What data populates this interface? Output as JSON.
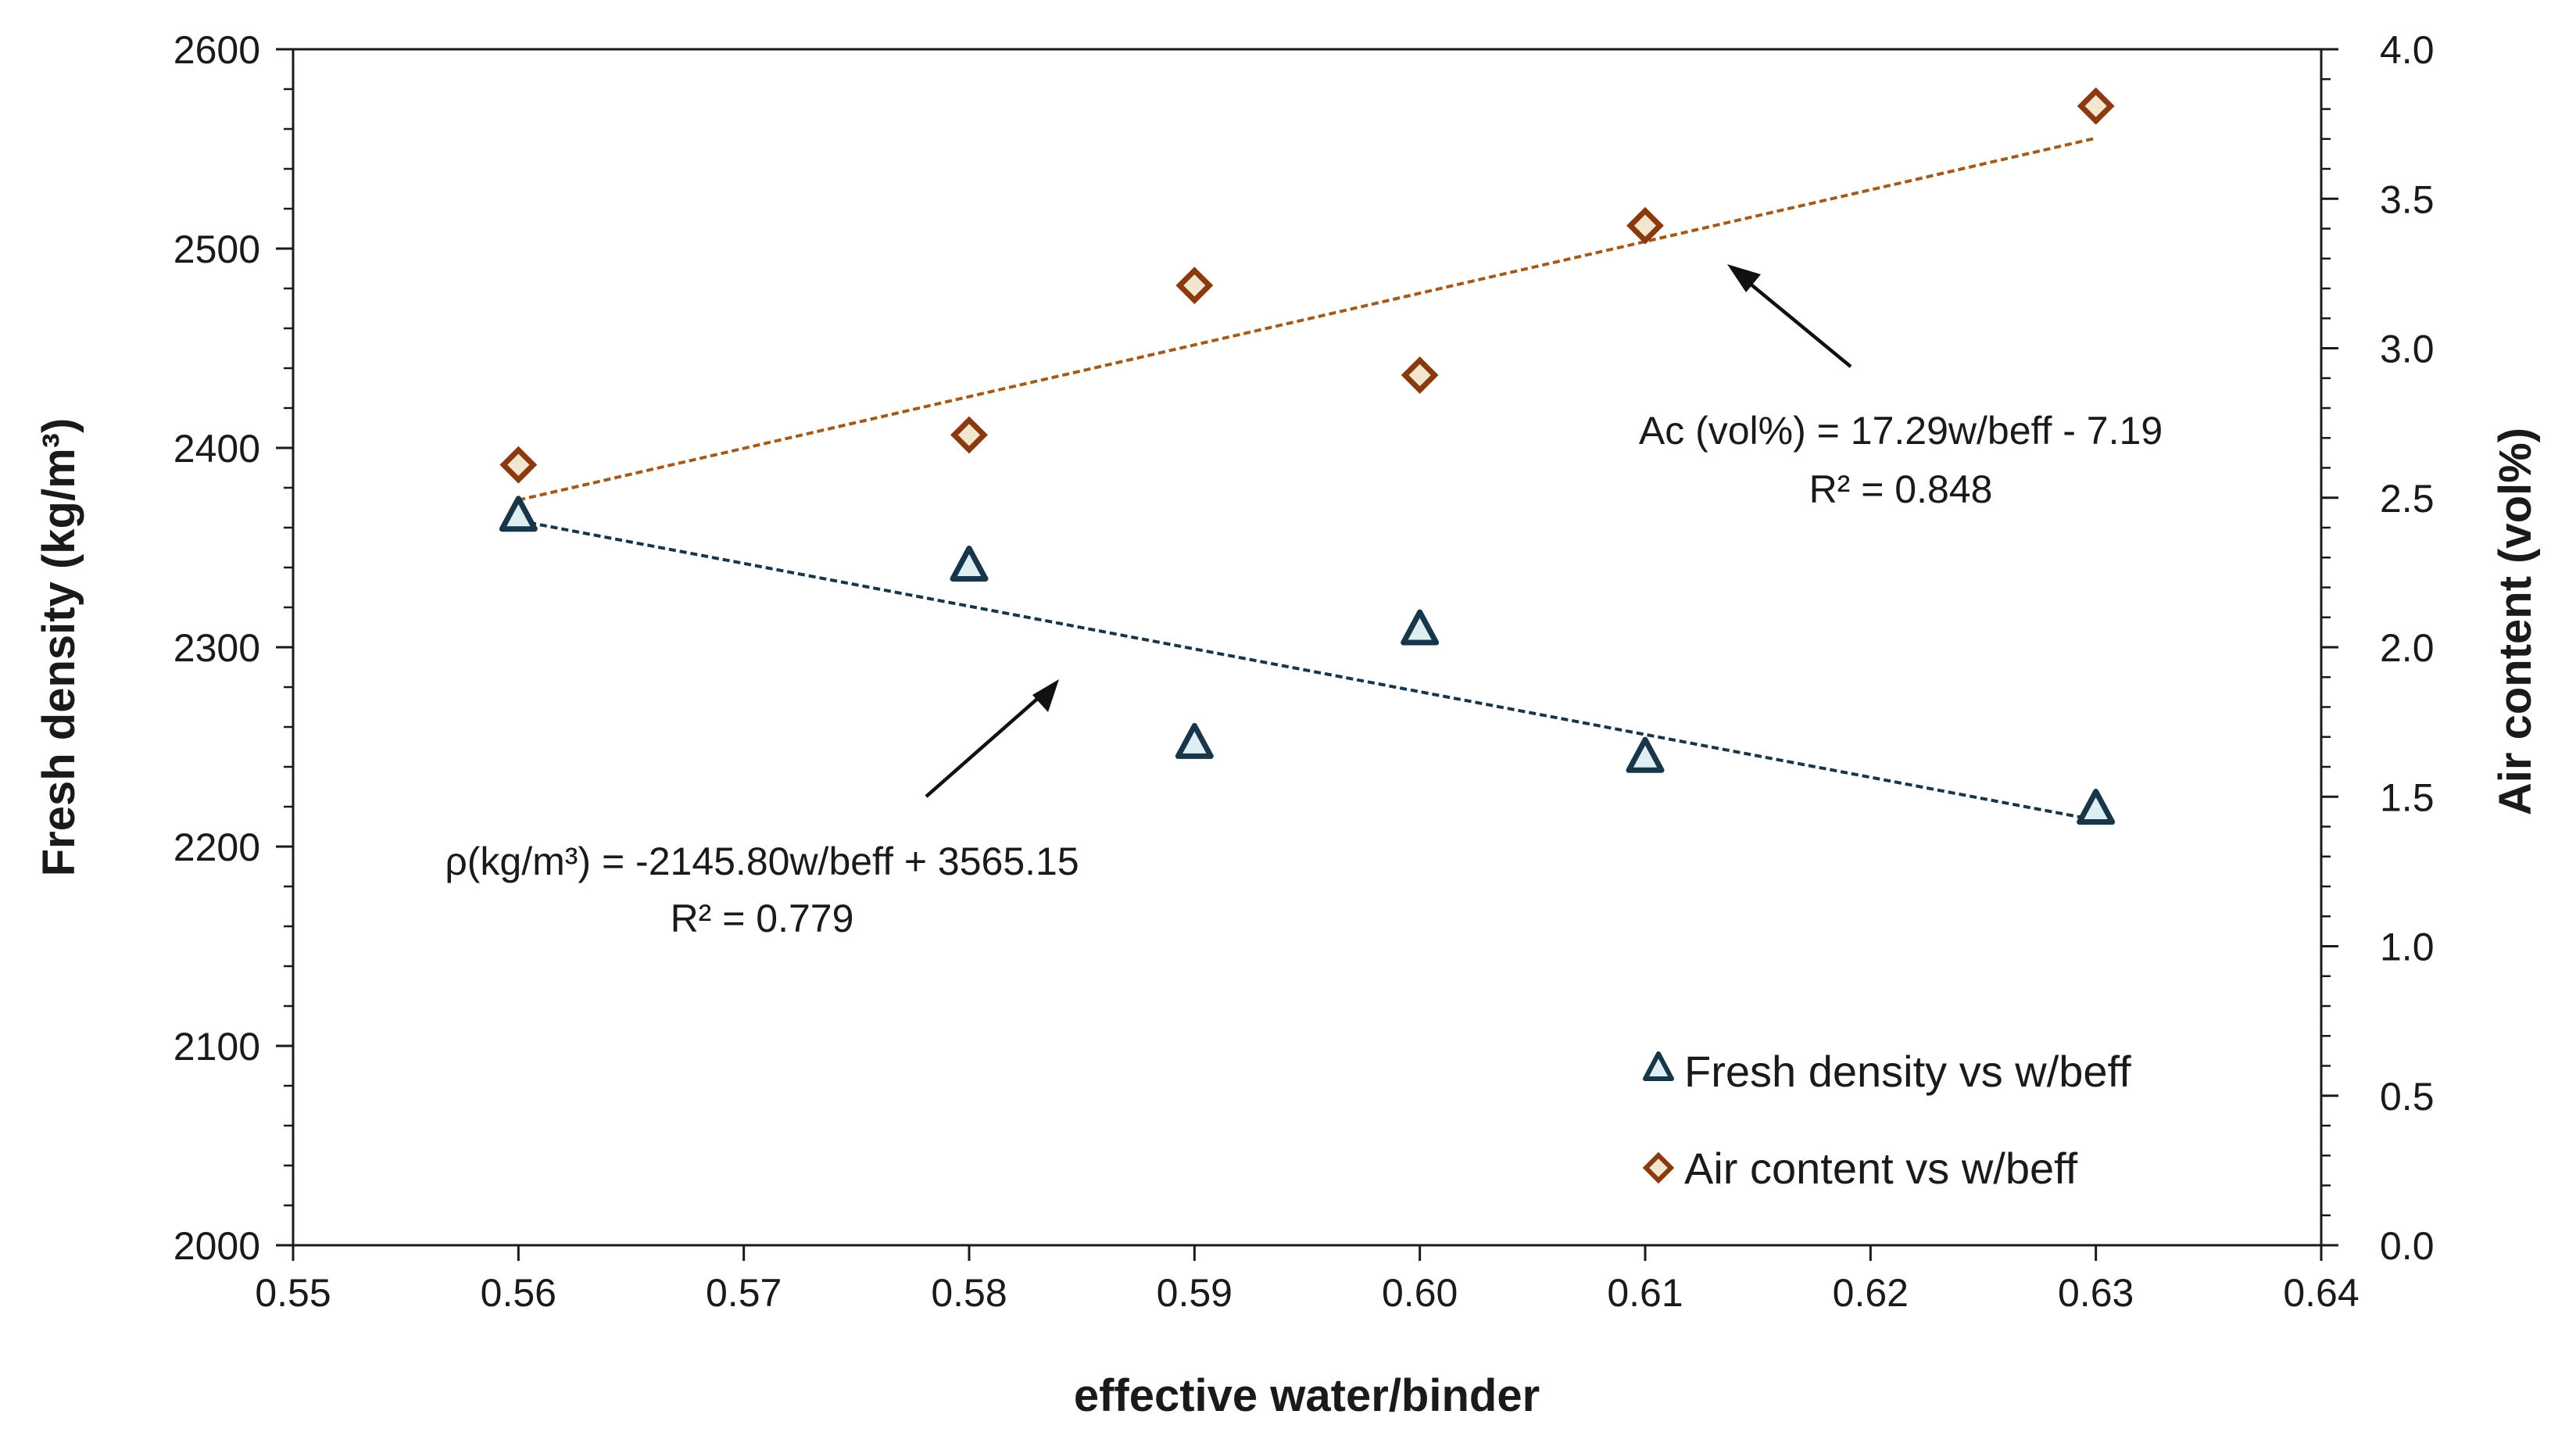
{
  "chart_data": {
    "type": "scatter",
    "xlabel": "effective water/binder",
    "ylabel_left": "Fresh density (kg/m³)",
    "ylabel_right": "Air content (vol%)",
    "xlim": [
      0.55,
      0.64
    ],
    "ylim_left": [
      2000,
      2600
    ],
    "ylim_right": [
      0.0,
      4.0
    ],
    "x_ticks": [
      "0.55",
      "0.56",
      "0.57",
      "0.58",
      "0.59",
      "0.60",
      "0.61",
      "0.62",
      "0.63",
      "0.64"
    ],
    "y_left_ticks": [
      "2000",
      "2100",
      "2200",
      "2300",
      "2400",
      "2500",
      "2600"
    ],
    "y_right_ticks": [
      "0.0",
      "0.5",
      "1.0",
      "1.5",
      "2.0",
      "2.5",
      "3.0",
      "3.5",
      "4.0"
    ],
    "grid": false,
    "legend_position": "bottom-right",
    "series": [
      {
        "name": "Fresh density vs w/beff",
        "axis": "left",
        "marker": "triangle",
        "color": "#17364a",
        "fill": "#dfeef2",
        "x": [
          0.56,
          0.58,
          0.59,
          0.6,
          0.61,
          0.63
        ],
        "y": [
          2366,
          2341,
          2252,
          2309,
          2245,
          2219
        ],
        "trendline": {
          "type": "linear",
          "slope": -2145.8,
          "intercept": 3565.15,
          "x_range": [
            0.56,
            0.63
          ],
          "color": "#17364a"
        }
      },
      {
        "name": "Air content vs w/beff",
        "axis": "right",
        "marker": "diamond",
        "color": "#8a3a0e",
        "fill": "#f2e6cf",
        "x": [
          0.56,
          0.58,
          0.59,
          0.6,
          0.61,
          0.63
        ],
        "y": [
          2.61,
          2.71,
          3.21,
          2.91,
          3.41,
          3.81
        ],
        "trendline": {
          "type": "linear",
          "slope": 17.29,
          "intercept": -7.19,
          "x_range": [
            0.56,
            0.63
          ],
          "color": "#a35a1c"
        }
      }
    ],
    "annotations": [
      {
        "line1": "Ac (vol%) = 17.29w/beff - 7.19",
        "line2": "R² = 0.848"
      },
      {
        "line1": "ρ(kg/m³) = -2145.80w/beff + 3565.15",
        "line2": "R² = 0.779"
      }
    ]
  }
}
